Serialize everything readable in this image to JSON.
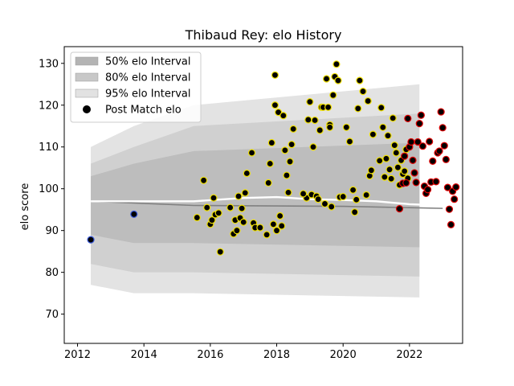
{
  "chart_data": {
    "type": "scatter",
    "title": "Thibaud Rey: elo History",
    "xlabel": "",
    "ylabel": "elo score",
    "xlim": [
      2011.6,
      2023.6
    ],
    "ylim": [
      63,
      134
    ],
    "xticks": [
      2012,
      2014,
      2016,
      2018,
      2020,
      2022
    ],
    "yticks": [
      70,
      80,
      90,
      100,
      110,
      120,
      130
    ],
    "grid": false,
    "legend_position": "top-left",
    "legend": [
      {
        "label": "50% elo Interval",
        "swatch": "#b4b4b4"
      },
      {
        "label": "80% elo Interval",
        "swatch": "#c8c8c8"
      },
      {
        "label": "95% elo Interval",
        "swatch": "#e2e2e2"
      },
      {
        "label": "Post Match elo",
        "swatch": "#000000"
      }
    ],
    "colors": {
      "band95": "#e3e3e3",
      "band80": "#d0d0d0",
      "band50": "#bdbdbd",
      "mean_line": "#ffffff",
      "median_line": "#808080",
      "marker_fill": "#000000",
      "edge_blue": "#3b5bdb",
      "edge_yellow": "#f0e000",
      "edge_red": "#e00000"
    },
    "bands": {
      "x": [
        2012.4,
        2013.7,
        2015.5,
        2022.3
      ],
      "p95_low": [
        77,
        75,
        75,
        74
      ],
      "p95_high": [
        110,
        115,
        120,
        125
      ],
      "p80_low": [
        82,
        80,
        80,
        79
      ],
      "p80_high": [
        106,
        110,
        115,
        118
      ],
      "p50_low": [
        89,
        87,
        87,
        86
      ],
      "p50_high": [
        103,
        106,
        109,
        111
      ]
    },
    "mean_line": {
      "x": [
        2012.4,
        2015.5,
        2017,
        2018,
        2019,
        2020,
        2021,
        2022,
        2023
      ],
      "y": [
        97,
        97,
        97.8,
        98,
        97.5,
        97.3,
        97,
        96.3,
        96
      ]
    },
    "median_line": {
      "x": [
        2012.4,
        2015.5,
        2020,
        2023
      ],
      "y": [
        97,
        96,
        95.8,
        95.3
      ]
    },
    "series": [
      {
        "name": "Post Match elo",
        "edge": "blue",
        "points": [
          [
            2012.4,
            87.8
          ],
          [
            2013.7,
            93.9
          ]
        ]
      },
      {
        "name": "Post Match elo",
        "edge": "yellow",
        "points": [
          [
            2015.6,
            93.1
          ],
          [
            2015.8,
            102
          ],
          [
            2015.9,
            95.5
          ],
          [
            2016.0,
            91.5
          ],
          [
            2016.05,
            92.5
          ],
          [
            2016.1,
            97.8
          ],
          [
            2016.15,
            93.8
          ],
          [
            2016.25,
            94.2
          ],
          [
            2016.3,
            84.9
          ],
          [
            2016.6,
            95.5
          ],
          [
            2016.7,
            89.2
          ],
          [
            2016.75,
            92.5
          ],
          [
            2016.8,
            90
          ],
          [
            2016.85,
            98.2
          ],
          [
            2016.9,
            93
          ],
          [
            2016.95,
            95.3
          ],
          [
            2017.0,
            92
          ],
          [
            2017.05,
            99
          ],
          [
            2017.1,
            103.7
          ],
          [
            2017.25,
            108.6
          ],
          [
            2017.3,
            91.8
          ],
          [
            2017.35,
            90.7
          ],
          [
            2017.5,
            90.7
          ],
          [
            2017.7,
            89
          ],
          [
            2017.75,
            101.4
          ],
          [
            2017.8,
            106
          ],
          [
            2017.85,
            111
          ],
          [
            2017.9,
            91.5
          ],
          [
            2017.95,
            120
          ],
          [
            2018.0,
            90
          ],
          [
            2018.05,
            118.3
          ],
          [
            2018.1,
            93.5
          ],
          [
            2018.15,
            91.1
          ],
          [
            2018.2,
            117.5
          ],
          [
            2018.25,
            109.2
          ],
          [
            2018.3,
            103.2
          ],
          [
            2018.35,
            99.1
          ],
          [
            2018.4,
            106.5
          ],
          [
            2018.45,
            110.6
          ],
          [
            2018.5,
            114.3
          ],
          [
            2017.95,
            127.2
          ],
          [
            2018.9,
            97.8
          ],
          [
            2019.0,
            120.8
          ],
          [
            2019.05,
            98.6
          ],
          [
            2019.1,
            110
          ],
          [
            2019.15,
            116.4
          ],
          [
            2019.2,
            98.2
          ],
          [
            2019.25,
            97.5
          ],
          [
            2019.3,
            114
          ],
          [
            2019.35,
            119.5
          ],
          [
            2019.4,
            119.5
          ],
          [
            2019.45,
            96.4
          ],
          [
            2019.5,
            126.3
          ],
          [
            2019.55,
            119.5
          ],
          [
            2019.6,
            115.3
          ],
          [
            2019.65,
            95.7
          ],
          [
            2019.7,
            122.4
          ],
          [
            2019.75,
            126.8
          ],
          [
            2019.8,
            129.8
          ],
          [
            2019.85,
            125.9
          ],
          [
            2019.9,
            98
          ],
          [
            2018.8,
            98.8
          ],
          [
            2018.95,
            116.5
          ],
          [
            2019.6,
            114.7
          ],
          [
            2020.0,
            98.1
          ],
          [
            2020.1,
            114.7
          ],
          [
            2020.2,
            111.3
          ],
          [
            2020.3,
            99.7
          ],
          [
            2020.35,
            94.4
          ],
          [
            2020.4,
            97.4
          ],
          [
            2020.45,
            119.2
          ],
          [
            2020.5,
            125.9
          ],
          [
            2020.6,
            123.3
          ],
          [
            2020.7,
            98.5
          ],
          [
            2020.75,
            121
          ],
          [
            2020.8,
            103.1
          ],
          [
            2020.85,
            104.4
          ],
          [
            2020.9,
            113
          ],
          [
            2021.1,
            106.7
          ],
          [
            2021.15,
            119.4
          ],
          [
            2021.2,
            114.7
          ],
          [
            2021.25,
            102.8
          ],
          [
            2021.3,
            107.2
          ],
          [
            2021.35,
            112.7
          ],
          [
            2021.4,
            104.6
          ],
          [
            2021.45,
            102.4
          ],
          [
            2021.5,
            116.9
          ],
          [
            2021.55,
            110.4
          ],
          [
            2021.6,
            108.6
          ],
          [
            2021.65,
            105.1
          ],
          [
            2021.7,
            100.9
          ],
          [
            2021.75,
            106.8
          ],
          [
            2021.8,
            103.5
          ],
          [
            2021.85,
            104.2
          ],
          [
            2021.9,
            109.4
          ],
          [
            2021.95,
            102.5
          ]
        ]
      },
      {
        "name": "Post Match elo",
        "edge": "red",
        "points": [
          [
            2021.7,
            95.2
          ],
          [
            2021.8,
            101.3
          ],
          [
            2021.85,
            107.8
          ],
          [
            2021.9,
            101.4
          ],
          [
            2021.95,
            116.8
          ],
          [
            2022.0,
            110
          ],
          [
            2022.05,
            111.2
          ],
          [
            2022.1,
            106.8
          ],
          [
            2022.15,
            103.8
          ],
          [
            2022.2,
            101.5
          ],
          [
            2022.25,
            111.2
          ],
          [
            2022.3,
            115.6
          ],
          [
            2022.35,
            117.6
          ],
          [
            2022.4,
            110.2
          ],
          [
            2022.45,
            100.6
          ],
          [
            2022.5,
            98.9
          ],
          [
            2022.55,
            99.8
          ],
          [
            2022.6,
            111.3
          ],
          [
            2022.65,
            101.6
          ],
          [
            2022.7,
            106.6
          ],
          [
            2022.8,
            101.7
          ],
          [
            2022.85,
            108.6
          ],
          [
            2022.9,
            109
          ],
          [
            2022.95,
            118.4
          ],
          [
            2023.0,
            114.6
          ],
          [
            2023.05,
            110.3
          ],
          [
            2023.1,
            107
          ],
          [
            2023.15,
            100.3
          ],
          [
            2023.2,
            95.1
          ],
          [
            2023.25,
            91.4
          ],
          [
            2023.3,
            99.4
          ],
          [
            2023.35,
            97.5
          ],
          [
            2023.4,
            100.4
          ]
        ]
      }
    ]
  }
}
